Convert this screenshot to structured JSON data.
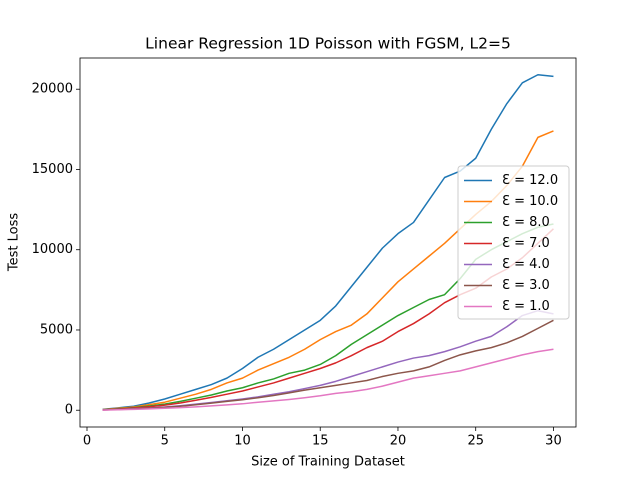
{
  "chart_data": {
    "type": "line",
    "title": "Linear Regression 1D Poisson with FGSM, L2=5",
    "x_label": "Size of Training Dataset",
    "y_label": "Test Loss",
    "x": [
      1,
      2,
      3,
      4,
      5,
      6,
      7,
      8,
      9,
      10,
      11,
      12,
      13,
      14,
      15,
      16,
      17,
      18,
      19,
      20,
      21,
      22,
      23,
      24,
      25,
      26,
      27,
      28,
      29,
      30
    ],
    "xlim": [
      -0.45,
      31.45
    ],
    "xticks": [
      0,
      5,
      10,
      15,
      20,
      25,
      30
    ],
    "ylim": [
      -1045,
      21945
    ],
    "yticks": [
      0,
      5000,
      10000,
      15000,
      20000
    ],
    "legend": "center right",
    "series": [
      {
        "name": "Ɛ = 12.0",
        "color": "#1f77b4",
        "values": [
          50,
          150,
          250,
          450,
          700,
          1000,
          1300,
          1600,
          2000,
          2600,
          3300,
          3800,
          4400,
          5000,
          5600,
          6500,
          7700,
          8900,
          10100,
          11000,
          11700,
          13100,
          14500,
          14900,
          15700,
          17500,
          19100,
          20400,
          20900,
          20800
        ]
      },
      {
        "name": "Ɛ = 10.0",
        "color": "#ff7f0e",
        "values": [
          40,
          120,
          200,
          350,
          500,
          750,
          1000,
          1300,
          1700,
          2000,
          2500,
          2900,
          3300,
          3800,
          4400,
          4900,
          5300,
          6000,
          7000,
          8000,
          8800,
          9600,
          10400,
          11300,
          12200,
          13000,
          14000,
          15200,
          17000,
          17400
        ]
      },
      {
        "name": "Ɛ = 8.0",
        "color": "#2ca02c",
        "values": [
          30,
          90,
          160,
          260,
          380,
          550,
          750,
          950,
          1200,
          1400,
          1700,
          1950,
          2300,
          2500,
          2850,
          3400,
          4100,
          4700,
          5300,
          5900,
          6400,
          6900,
          7200,
          8200,
          9400,
          10000,
          10500,
          11000,
          11400,
          11600
        ]
      },
      {
        "name": "Ɛ = 7.0",
        "color": "#d62728",
        "values": [
          25,
          80,
          140,
          220,
          320,
          450,
          620,
          800,
          1000,
          1200,
          1450,
          1700,
          2000,
          2300,
          2600,
          2950,
          3400,
          3900,
          4300,
          4900,
          5400,
          6000,
          6700,
          7200,
          7600,
          8300,
          8800,
          9500,
          10400,
          11300
        ]
      },
      {
        "name": "Ɛ = 4.0",
        "color": "#9467bd",
        "values": [
          15,
          50,
          90,
          140,
          200,
          280,
          380,
          480,
          590,
          700,
          830,
          1000,
          1150,
          1350,
          1550,
          1800,
          2100,
          2400,
          2700,
          3000,
          3250,
          3400,
          3650,
          3950,
          4300,
          4600,
          5200,
          5900,
          6200,
          6000
        ]
      },
      {
        "name": "Ɛ = 3.0",
        "color": "#8c564b",
        "values": [
          15,
          45,
          80,
          120,
          180,
          250,
          340,
          440,
          550,
          650,
          780,
          920,
          1080,
          1250,
          1400,
          1550,
          1700,
          1850,
          2100,
          2300,
          2450,
          2700,
          3100,
          3450,
          3700,
          3900,
          4200,
          4600,
          5100,
          5600
        ]
      },
      {
        "name": "Ɛ = 1.0",
        "color": "#e377c2",
        "values": [
          10,
          30,
          55,
          85,
          120,
          160,
          210,
          270,
          330,
          400,
          500,
          580,
          670,
          780,
          900,
          1050,
          1150,
          1300,
          1500,
          1750,
          2000,
          2150,
          2300,
          2450,
          2700,
          2950,
          3200,
          3450,
          3650,
          3800
        ]
      }
    ]
  }
}
